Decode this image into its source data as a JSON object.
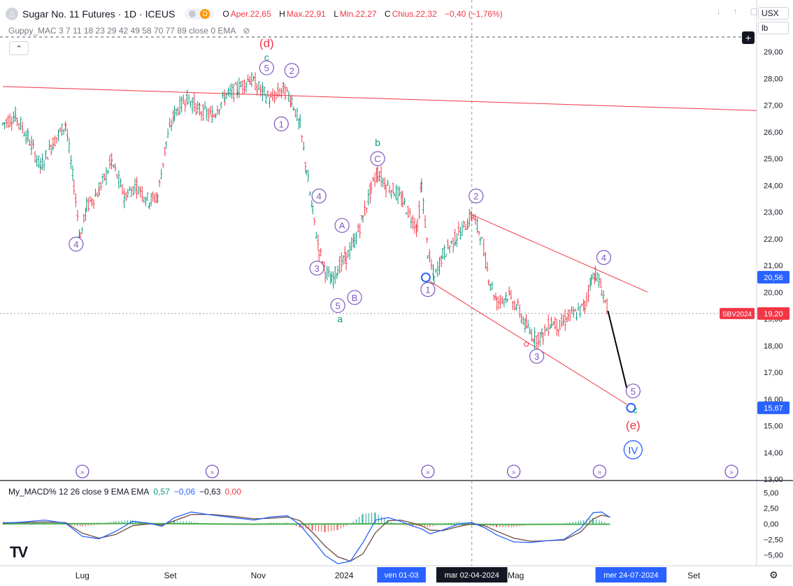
{
  "header": {
    "title": "Sugar No. 11 Futures · 1D · ICEUS",
    "badge": "D",
    "ohlc": [
      {
        "k": "O",
        "v": "Aper.22,65"
      },
      {
        "k": "H",
        "v": "Max.22,91"
      },
      {
        "k": "L",
        "v": "Min.22,27"
      },
      {
        "k": "C",
        "v": "Chius.22,32"
      },
      {
        "k": "",
        "v": "−0,40 (−1,76%)"
      }
    ],
    "indicator": "Guppy_MAC 3 7 11 18 23 29 42 49 58 70 77 89 close 0 EMA",
    "currency": "USX",
    "unit": "lb"
  },
  "macd_label": {
    "name": "My_MACD% 12 26 close 9 EMA EMA",
    "v1": "0,57",
    "v2": "−0,06",
    "v3": "−0,63",
    "v4": "0,00"
  },
  "chart_data": {
    "type": "candlestick",
    "symbol": "SBV2024",
    "ylim": [
      13,
      29.5
    ],
    "yticks": [
      "29,00",
      "28,00",
      "27,00",
      "26,00",
      "25,00",
      "24,00",
      "23,00",
      "22,00",
      "21,00",
      "20,00",
      "19,00",
      "18,00",
      "17,00",
      "16,00",
      "15,00",
      "14,00",
      "13,00"
    ],
    "y_values": [
      29,
      28,
      27,
      26,
      25,
      24,
      23,
      22,
      21,
      20,
      19,
      18,
      17,
      16,
      15,
      14,
      13
    ],
    "price_labels": [
      {
        "text": "20,56",
        "value": 20.56,
        "color": "#2962ff"
      },
      {
        "text": "19,20",
        "value": 19.2,
        "color": "#f23645",
        "tag": "SBV2024"
      },
      {
        "text": "15,67",
        "value": 15.67,
        "color": "#2962ff"
      }
    ],
    "xlim": [
      0,
      360
    ],
    "xticks": [
      {
        "label": "Lug",
        "x": 38
      },
      {
        "label": "Set",
        "x": 80
      },
      {
        "label": "Nov",
        "x": 122
      },
      {
        "label": "2024",
        "x": 163
      },
      {
        "label": "Mag",
        "x": 245
      },
      {
        "label": "Set",
        "x": 330
      }
    ],
    "cursor_dates": [
      {
        "label": "ven 01-03",
        "x": 200
      },
      {
        "label": "mar 02-04-2024",
        "x": 224
      },
      {
        "label": "mer 24-07-2024",
        "x": 300
      }
    ],
    "crosshair": {
      "x": 224,
      "y": 19.2
    },
    "price_path": [
      [
        0,
        26.3
      ],
      [
        6,
        26.6
      ],
      [
        12,
        25.8
      ],
      [
        18,
        24.7
      ],
      [
        24,
        25.6
      ],
      [
        30,
        26.3
      ],
      [
        34,
        24.0
      ],
      [
        37,
        22.0
      ],
      [
        40,
        23.2
      ],
      [
        46,
        23.8
      ],
      [
        52,
        24.9
      ],
      [
        58,
        23.6
      ],
      [
        64,
        24.0
      ],
      [
        70,
        23.4
      ],
      [
        74,
        23.6
      ],
      [
        78,
        25.6
      ],
      [
        82,
        26.7
      ],
      [
        88,
        27.3
      ],
      [
        94,
        26.8
      ],
      [
        100,
        26.6
      ],
      [
        106,
        27.3
      ],
      [
        112,
        27.6
      ],
      [
        118,
        28.0
      ],
      [
        124,
        27.5
      ],
      [
        128,
        27.2
      ],
      [
        134,
        27.6
      ],
      [
        138,
        27.2
      ],
      [
        142,
        26.2
      ],
      [
        145,
        24.6
      ],
      [
        148,
        23.0
      ],
      [
        151,
        21.6
      ],
      [
        154,
        20.8
      ],
      [
        157,
        20.4
      ],
      [
        160,
        20.9
      ],
      [
        164,
        21.3
      ],
      [
        168,
        21.9
      ],
      [
        172,
        22.8
      ],
      [
        176,
        23.9
      ],
      [
        179,
        24.5
      ],
      [
        183,
        24.0
      ],
      [
        187,
        23.8
      ],
      [
        191,
        23.4
      ],
      [
        195,
        22.8
      ],
      [
        198,
        22.4
      ],
      [
        200,
        24.0
      ],
      [
        203,
        21.5
      ],
      [
        206,
        20.5
      ],
      [
        210,
        21.4
      ],
      [
        216,
        22.0
      ],
      [
        222,
        22.6
      ],
      [
        224,
        22.9
      ],
      [
        228,
        22.2
      ],
      [
        232,
        20.6
      ],
      [
        236,
        19.6
      ],
      [
        241,
        19.9
      ],
      [
        246,
        19.4
      ],
      [
        250,
        18.7
      ],
      [
        254,
        18.3
      ],
      [
        258,
        18.4
      ],
      [
        262,
        18.9
      ],
      [
        266,
        18.7
      ],
      [
        270,
        19.1
      ],
      [
        274,
        19.2
      ],
      [
        278,
        19.5
      ],
      [
        281,
        20.5
      ],
      [
        283,
        20.7
      ],
      [
        286,
        20.1
      ],
      [
        289,
        19.3
      ]
    ],
    "projection": [
      [
        289,
        19.3
      ],
      [
        298,
        16.4
      ]
    ],
    "trendlines": [
      {
        "from": [
          0,
          27.7
        ],
        "to": [
          360,
          26.8
        ]
      },
      {
        "from": [
          224,
          22.9
        ],
        "to": [
          308,
          20.0
        ]
      },
      {
        "from": [
          202,
          20.5
        ],
        "to": [
          298,
          15.8
        ]
      }
    ],
    "annotations": [
      {
        "text": "(d)",
        "x": 126,
        "y": 29.3,
        "color": "#f23645",
        "style": "plain",
        "size": 17
      },
      {
        "text": "c",
        "x": 126,
        "y": 28.8,
        "color": "#089981",
        "style": "plain",
        "size": 14
      },
      {
        "text": "5",
        "x": 126,
        "y": 28.4,
        "style": "circle"
      },
      {
        "text": "2",
        "x": 138,
        "y": 28.3,
        "style": "circle"
      },
      {
        "text": "1",
        "x": 133,
        "y": 26.3,
        "style": "circle"
      },
      {
        "text": "4",
        "x": 35,
        "y": 21.8,
        "style": "circle"
      },
      {
        "text": "4",
        "x": 151,
        "y": 23.6,
        "style": "circle"
      },
      {
        "text": "A",
        "x": 162,
        "y": 22.5,
        "style": "circle"
      },
      {
        "text": "3",
        "x": 150,
        "y": 20.9,
        "style": "circle"
      },
      {
        "text": "B",
        "x": 168,
        "y": 19.8,
        "style": "circle"
      },
      {
        "text": "5",
        "x": 160,
        "y": 19.5,
        "style": "circle"
      },
      {
        "text": "a",
        "x": 161,
        "y": 19.0,
        "color": "#089981",
        "style": "plain",
        "size": 14
      },
      {
        "text": "b",
        "x": 179,
        "y": 25.6,
        "color": "#089981",
        "style": "plain",
        "size": 14
      },
      {
        "text": "C",
        "x": 179,
        "y": 25.0,
        "style": "circle"
      },
      {
        "text": "2",
        "x": 226,
        "y": 23.6,
        "style": "circle"
      },
      {
        "text": "1",
        "x": 203,
        "y": 20.1,
        "style": "circle"
      },
      {
        "text": "3",
        "x": 255,
        "y": 17.6,
        "style": "circle"
      },
      {
        "text": "4",
        "x": 287,
        "y": 21.3,
        "style": "circle"
      },
      {
        "text": "5",
        "x": 301,
        "y": 16.3,
        "style": "circle"
      },
      {
        "text": "c",
        "x": 302,
        "y": 15.6,
        "color": "#089981",
        "style": "plain",
        "size": 13
      },
      {
        "text": "(e)",
        "x": 301,
        "y": 15.0,
        "color": "#f23645",
        "style": "plain",
        "size": 17
      },
      {
        "text": "IV",
        "x": 301,
        "y": 14.1,
        "style": "circle-big",
        "color": "#2962ff"
      }
    ],
    "event_markers_x": [
      38,
      100,
      203,
      244,
      285,
      348
    ],
    "macd": {
      "ylim": [
        -6.5,
        6.5
      ],
      "yticks": [
        "5,00",
        "2,50",
        "0,00",
        "−2,50",
        "−5,00"
      ],
      "y_values": [
        5,
        2.5,
        0,
        -2.5,
        -5
      ],
      "macd_line": [
        [
          0,
          0.1
        ],
        [
          10,
          0.3
        ],
        [
          20,
          0.6
        ],
        [
          30,
          0.1
        ],
        [
          38,
          -2.0
        ],
        [
          46,
          -2.4
        ],
        [
          54,
          -1.2
        ],
        [
          62,
          0.4
        ],
        [
          70,
          0.1
        ],
        [
          76,
          -0.4
        ],
        [
          82,
          1.0
        ],
        [
          90,
          1.9
        ],
        [
          100,
          1.4
        ],
        [
          110,
          1.0
        ],
        [
          120,
          0.6
        ],
        [
          128,
          1.1
        ],
        [
          136,
          1.3
        ],
        [
          142,
          -0.2
        ],
        [
          148,
          -2.6
        ],
        [
          154,
          -5.1
        ],
        [
          160,
          -6.4
        ],
        [
          166,
          -6.0
        ],
        [
          172,
          -3.0
        ],
        [
          178,
          0.6
        ],
        [
          184,
          1.0
        ],
        [
          190,
          0.4
        ],
        [
          196,
          -0.4
        ],
        [
          200,
          -0.8
        ],
        [
          204,
          -1.6
        ],
        [
          210,
          -1.0
        ],
        [
          218,
          0.0
        ],
        [
          224,
          0.2
        ],
        [
          230,
          -0.6
        ],
        [
          236,
          -1.8
        ],
        [
          244,
          -2.9
        ],
        [
          252,
          -3.0
        ],
        [
          260,
          -2.7
        ],
        [
          268,
          -2.5
        ],
        [
          276,
          -0.7
        ],
        [
          282,
          1.8
        ],
        [
          286,
          1.9
        ],
        [
          290,
          1.0
        ]
      ],
      "signal_line": [
        [
          0,
          0.2
        ],
        [
          10,
          0.2
        ],
        [
          20,
          0.3
        ],
        [
          30,
          0.2
        ],
        [
          38,
          -1.5
        ],
        [
          46,
          -2.3
        ],
        [
          54,
          -1.7
        ],
        [
          62,
          -0.3
        ],
        [
          70,
          0.0
        ],
        [
          76,
          -0.2
        ],
        [
          82,
          0.5
        ],
        [
          90,
          1.5
        ],
        [
          100,
          1.5
        ],
        [
          110,
          1.2
        ],
        [
          120,
          0.8
        ],
        [
          128,
          0.9
        ],
        [
          136,
          1.1
        ],
        [
          142,
          0.5
        ],
        [
          148,
          -1.4
        ],
        [
          154,
          -3.6
        ],
        [
          160,
          -5.3
        ],
        [
          166,
          -6.0
        ],
        [
          172,
          -4.8
        ],
        [
          178,
          -1.4
        ],
        [
          184,
          0.5
        ],
        [
          190,
          0.6
        ],
        [
          196,
          0.1
        ],
        [
          200,
          -0.3
        ],
        [
          204,
          -1.0
        ],
        [
          210,
          -1.1
        ],
        [
          218,
          -0.4
        ],
        [
          224,
          0.0
        ],
        [
          230,
          -0.3
        ],
        [
          236,
          -1.2
        ],
        [
          244,
          -2.3
        ],
        [
          252,
          -2.8
        ],
        [
          260,
          -2.7
        ],
        [
          268,
          -2.6
        ],
        [
          276,
          -1.3
        ],
        [
          282,
          0.8
        ],
        [
          286,
          1.4
        ],
        [
          290,
          1.1
        ]
      ],
      "zero_line": [
        [
          0,
          0.0
        ],
        [
          60,
          0.05
        ],
        [
          120,
          -0.05
        ],
        [
          180,
          0.0
        ],
        [
          240,
          -0.1
        ],
        [
          290,
          -0.05
        ]
      ]
    },
    "colors": {
      "up": "#089981",
      "down": "#f23645",
      "trend": "#f23645",
      "wave": "#7e57c2",
      "blue": "#2962ff",
      "macd": "#2962ff",
      "signal": "#6d4c41",
      "zero": "#4caf50"
    }
  }
}
